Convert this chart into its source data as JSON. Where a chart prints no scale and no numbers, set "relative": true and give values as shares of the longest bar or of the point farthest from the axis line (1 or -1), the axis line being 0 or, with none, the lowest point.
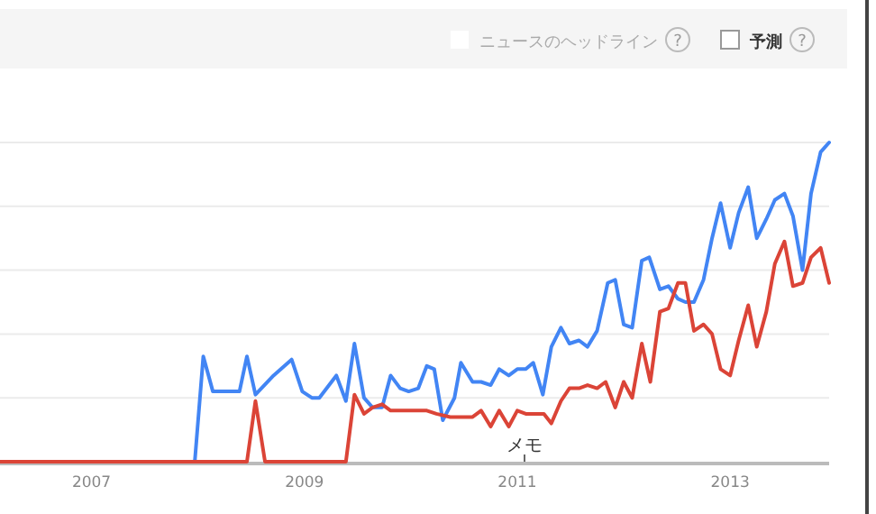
{
  "chart_data": {
    "type": "line",
    "relative": true,
    "grid": "y",
    "marker": "none",
    "line_style": "solid",
    "xlim": [
      2006.14,
      2013.93
    ],
    "xticks": [
      2007,
      2009,
      2011,
      2013
    ],
    "annotations": [
      "ニュースのヘッドライン",
      "?",
      "予測",
      "?",
      "メモ"
    ],
    "series": [
      {
        "color": "#4285f4",
        "x": [
          2006.14,
          2007.97,
          2008.05,
          2008.14,
          2008.39,
          2008.46,
          2008.54,
          2008.71,
          2008.88,
          2008.98,
          2009.07,
          2009.14,
          2009.3,
          2009.39,
          2009.47,
          2009.56,
          2009.64,
          2009.73,
          2009.81,
          2009.9,
          2009.98,
          2010.07,
          2010.15,
          2010.22,
          2010.3,
          2010.41,
          2010.47,
          2010.58,
          2010.66,
          2010.75,
          2010.83,
          2010.92,
          2011.0,
          2011.08,
          2011.15,
          2011.24,
          2011.32,
          2011.41,
          2011.49,
          2011.58,
          2011.66,
          2011.75,
          2011.85,
          2011.92,
          2012.0,
          2012.08,
          2012.17,
          2012.24,
          2012.34,
          2012.42,
          2012.51,
          2012.58,
          2012.66,
          2012.75,
          2012.83,
          2012.91,
          2013.0,
          2013.08,
          2013.17,
          2013.25,
          2013.34,
          2013.42,
          2013.51,
          2013.59,
          2013.68,
          2013.76,
          2013.85,
          2013.93
        ],
        "values": [
          0,
          0,
          0.33,
          0.22,
          0.22,
          0.33,
          0.21,
          0.27,
          0.32,
          0.22,
          0.2,
          0.2,
          0.27,
          0.19,
          0.37,
          0.2,
          0.17,
          0.17,
          0.27,
          0.23,
          0.22,
          0.23,
          0.3,
          0.29,
          0.13,
          0.2,
          0.31,
          0.25,
          0.25,
          0.24,
          0.29,
          0.27,
          0.29,
          0.29,
          0.31,
          0.21,
          0.36,
          0.42,
          0.37,
          0.38,
          0.36,
          0.41,
          0.56,
          0.57,
          0.43,
          0.42,
          0.63,
          0.64,
          0.54,
          0.55,
          0.51,
          0.5,
          0.5,
          0.57,
          0.7,
          0.81,
          0.67,
          0.78,
          0.86,
          0.7,
          0.76,
          0.82,
          0.84,
          0.77,
          0.6,
          0.84,
          0.97,
          1
        ]
      },
      {
        "color": "#db4437",
        "x": [
          2006.14,
          2008.46,
          2008.54,
          2008.63,
          2009.39,
          2009.47,
          2009.56,
          2009.64,
          2009.73,
          2009.81,
          2010.15,
          2010.24,
          2010.37,
          2010.58,
          2010.66,
          2010.75,
          2010.83,
          2010.92,
          2011.0,
          2011.08,
          2011.25,
          2011.32,
          2011.41,
          2011.49,
          2011.58,
          2011.66,
          2011.75,
          2011.83,
          2011.92,
          2012.0,
          2012.08,
          2012.17,
          2012.25,
          2012.34,
          2012.42,
          2012.51,
          2012.58,
          2012.66,
          2012.75,
          2012.83,
          2012.91,
          2013.0,
          2013.08,
          2013.17,
          2013.25,
          2013.34,
          2013.42,
          2013.51,
          2013.59,
          2013.68,
          2013.76,
          2013.85,
          2013.93
        ],
        "values": [
          0,
          0,
          0.19,
          0,
          0,
          0.21,
          0.15,
          0.17,
          0.18,
          0.16,
          0.16,
          0.15,
          0.14,
          0.14,
          0.16,
          0.11,
          0.16,
          0.11,
          0.16,
          0.15,
          0.15,
          0.12,
          0.19,
          0.23,
          0.23,
          0.24,
          0.23,
          0.25,
          0.17,
          0.25,
          0.2,
          0.37,
          0.25,
          0.47,
          0.48,
          0.56,
          0.56,
          0.41,
          0.43,
          0.4,
          0.29,
          0.27,
          0.38,
          0.49,
          0.36,
          0.47,
          0.62,
          0.69,
          0.55,
          0.56,
          0.64,
          0.67,
          0.56
        ]
      }
    ]
  }
}
